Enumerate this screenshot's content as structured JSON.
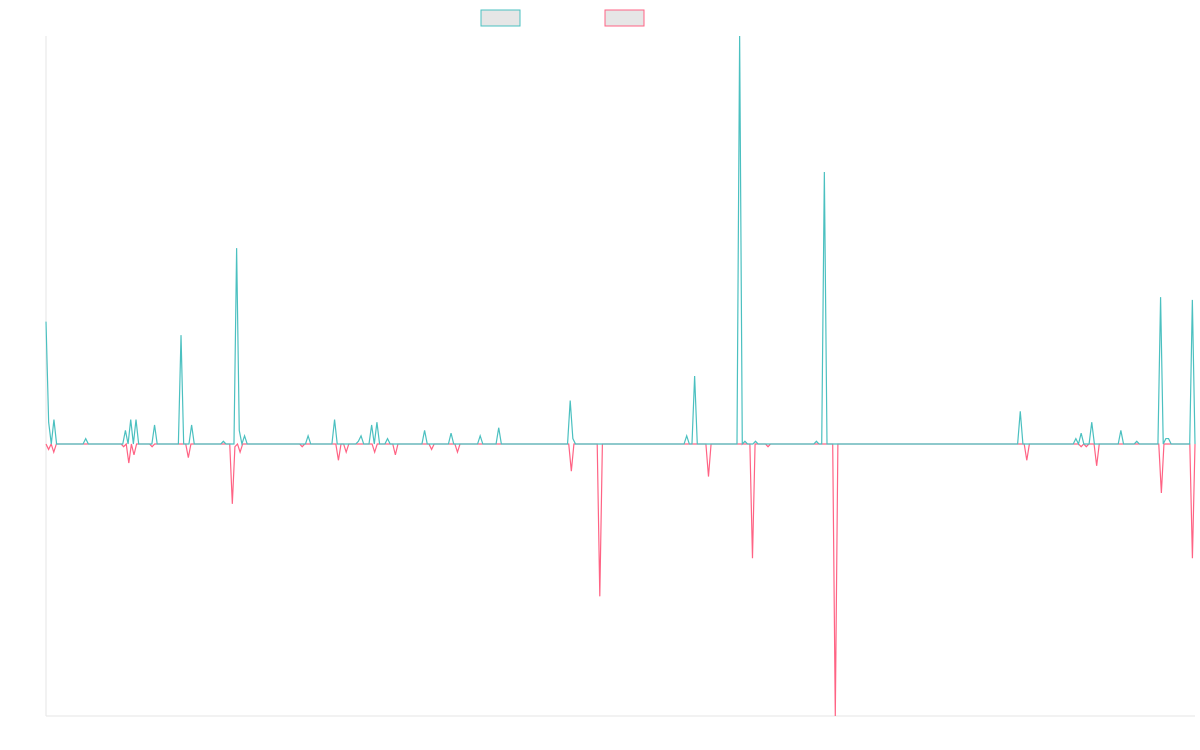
{
  "chart_data": {
    "type": "line",
    "title": "",
    "xlabel": "",
    "ylabel": "",
    "ylim": [
      -100,
      150
    ],
    "grid": false,
    "legend": "top-center",
    "colors": {
      "series_a": "#4bc0c0",
      "series_b": "#ff6384",
      "axis": "#e5e5e5",
      "legend_fill": "#e6e6e6"
    },
    "series": [
      {
        "key": "a",
        "values": [
          45,
          8,
          0,
          9,
          0,
          0,
          0,
          0,
          0,
          0,
          0,
          0,
          0,
          0,
          0,
          2,
          0,
          0,
          0,
          0,
          0,
          0,
          0,
          0,
          0,
          0,
          0,
          0,
          0,
          0,
          5,
          0,
          9,
          0,
          9,
          0,
          0,
          0,
          0,
          0,
          0,
          7,
          0,
          0,
          0,
          0,
          0,
          0,
          0,
          0,
          0,
          40,
          0,
          0,
          0,
          7,
          0,
          0,
          0,
          0,
          0,
          0,
          0,
          0,
          0,
          0,
          0,
          1,
          0,
          0,
          0,
          0,
          72,
          5,
          0,
          3,
          0,
          0,
          0,
          0,
          0,
          0,
          0,
          0,
          0,
          0,
          0,
          0,
          0,
          0,
          0,
          0,
          0,
          0,
          0,
          0,
          0,
          0,
          0,
          3,
          0,
          0,
          0,
          0,
          0,
          0,
          0,
          0,
          0,
          9,
          0,
          0,
          0,
          0,
          0,
          0,
          0,
          0,
          1,
          3,
          0,
          0,
          0,
          7,
          0,
          8,
          0,
          0,
          0,
          2,
          0,
          0,
          0,
          0,
          0,
          0,
          0,
          0,
          0,
          0,
          0,
          0,
          0,
          5,
          0,
          0,
          0,
          0,
          0,
          0,
          0,
          0,
          0,
          4,
          0,
          0,
          0,
          0,
          0,
          0,
          0,
          0,
          0,
          0,
          3,
          0,
          0,
          0,
          0,
          0,
          0,
          6,
          0,
          0,
          0,
          0,
          0,
          0,
          0,
          0,
          0,
          0,
          0,
          0,
          0,
          0,
          0,
          0,
          0,
          0,
          0,
          0,
          0,
          0,
          0,
          0,
          0,
          0,
          16,
          2,
          0,
          0,
          0,
          0,
          0,
          0,
          0,
          0,
          0,
          0,
          0,
          0,
          0,
          0,
          0,
          0,
          0,
          0,
          0,
          0,
          0,
          0,
          0,
          0,
          0,
          0,
          0,
          0,
          0,
          0,
          0,
          0,
          0,
          0,
          0,
          0,
          0,
          0,
          0,
          0,
          0,
          0,
          3,
          0,
          0,
          25,
          0,
          0,
          0,
          0,
          0,
          0,
          0,
          0,
          0,
          0,
          0,
          0,
          0,
          0,
          0,
          0,
          150,
          0,
          1,
          0,
          0,
          0,
          1,
          0,
          0,
          0,
          0,
          0,
          0,
          0,
          0,
          0,
          0,
          0,
          0,
          0,
          0,
          0,
          0,
          0,
          0,
          0,
          0,
          0,
          0,
          1,
          0,
          0,
          100,
          0,
          0,
          0,
          0,
          0,
          0,
          0,
          0,
          0,
          0,
          0,
          0,
          0,
          0,
          0,
          0,
          0,
          0,
          0,
          0,
          0,
          0,
          0,
          0,
          0,
          0,
          0,
          0,
          0,
          0,
          0,
          0,
          0,
          0,
          0,
          0,
          0,
          0,
          0,
          0,
          0,
          0,
          0,
          0,
          0,
          0,
          0,
          0,
          0,
          0,
          0,
          0,
          0,
          0,
          0,
          0,
          0,
          0,
          0,
          0,
          0,
          0,
          0,
          0,
          0,
          0,
          0,
          0,
          0,
          0,
          0,
          0,
          0,
          12,
          0,
          0,
          0,
          0,
          0,
          0,
          0,
          0,
          0,
          0,
          0,
          0,
          0,
          0,
          0,
          0,
          0,
          0,
          0,
          0,
          2,
          0,
          4,
          0,
          0,
          0,
          8,
          0,
          0,
          0,
          0,
          0,
          0,
          0,
          0,
          0,
          0,
          5,
          0,
          0,
          0,
          0,
          0,
          1,
          0,
          0,
          0,
          0,
          0,
          0,
          0,
          0,
          54,
          0,
          2,
          2,
          0,
          0,
          0,
          0,
          0,
          0,
          0,
          0,
          53,
          0
        ]
      },
      {
        "key": "b",
        "values": [
          0,
          -2,
          0,
          -3,
          0,
          0,
          0,
          0,
          0,
          0,
          0,
          0,
          0,
          0,
          0,
          0,
          0,
          0,
          0,
          0,
          0,
          0,
          0,
          0,
          0,
          0,
          0,
          0,
          0,
          0,
          -1,
          0,
          -7,
          0,
          -4,
          0,
          0,
          0,
          0,
          0,
          0,
          -1,
          0,
          0,
          0,
          0,
          0,
          0,
          0,
          0,
          0,
          0,
          0,
          0,
          0,
          -5,
          0,
          0,
          0,
          0,
          0,
          0,
          0,
          0,
          0,
          0,
          0,
          0,
          0,
          0,
          0,
          0,
          -22,
          -1,
          0,
          -3,
          0,
          0,
          0,
          0,
          0,
          0,
          0,
          0,
          0,
          0,
          0,
          0,
          0,
          0,
          0,
          0,
          0,
          0,
          0,
          0,
          0,
          0,
          0,
          -1,
          0,
          0,
          0,
          0,
          0,
          0,
          0,
          0,
          0,
          0,
          0,
          0,
          0,
          -6,
          0,
          0,
          -3,
          0,
          0,
          0,
          0,
          0,
          0,
          0,
          0,
          0,
          0,
          -3,
          0,
          0,
          0,
          0,
          0,
          0,
          0,
          -4,
          0,
          0,
          0,
          0,
          0,
          0,
          0,
          0,
          0,
          0,
          0,
          0,
          0,
          -2,
          0,
          0,
          0,
          0,
          0,
          0,
          0,
          0,
          0,
          -3,
          0,
          0,
          0,
          0,
          0,
          0,
          0,
          0,
          0,
          0,
          0,
          0,
          0,
          0,
          0,
          0,
          0,
          0,
          0,
          0,
          0,
          0,
          0,
          0,
          0,
          0,
          0,
          0,
          0,
          0,
          0,
          0,
          0,
          0,
          0,
          0,
          0,
          0,
          0,
          0,
          0,
          0,
          0,
          -10,
          0,
          0,
          0,
          0,
          0,
          0,
          0,
          0,
          0,
          0,
          -56,
          0,
          0,
          0,
          0,
          0,
          0,
          0,
          0,
          0,
          0,
          0,
          0,
          0,
          0,
          0,
          0,
          0,
          0,
          0,
          0,
          0,
          0,
          0,
          0,
          0,
          0,
          0,
          0,
          0,
          0,
          0,
          0,
          0,
          0,
          0,
          0,
          0,
          0,
          0,
          0,
          0,
          -12,
          0,
          0,
          0,
          0,
          0,
          0,
          0,
          0,
          0,
          0,
          0,
          0,
          0,
          0,
          0,
          0,
          -42,
          0,
          0,
          0,
          0,
          0,
          -1,
          0,
          0,
          0,
          0,
          0,
          0,
          0,
          0,
          0,
          0,
          0,
          0,
          0,
          0,
          0,
          0,
          0,
          0,
          0,
          0,
          0,
          0,
          0,
          0,
          0,
          -100,
          0,
          0,
          0,
          0,
          0,
          0,
          0,
          0,
          0,
          0,
          0,
          0,
          0,
          0,
          0,
          0,
          0,
          0,
          0,
          0,
          0,
          0,
          0,
          0,
          0,
          0,
          0,
          0,
          0,
          0,
          0,
          0,
          0,
          0,
          0,
          0,
          0,
          0,
          0,
          0,
          0,
          0,
          0,
          0,
          0,
          0,
          0,
          0,
          0,
          0,
          0,
          0,
          0,
          0,
          0,
          0,
          0,
          0,
          0,
          0,
          0,
          0,
          0,
          0,
          0,
          0,
          0,
          0,
          0,
          0,
          0,
          0,
          0,
          -6,
          0,
          0,
          0,
          0,
          0,
          0,
          0,
          0,
          0,
          0,
          0,
          0,
          0,
          0,
          0,
          0,
          0,
          0,
          0,
          0,
          -1,
          0,
          -1,
          0,
          0,
          0,
          -8,
          0,
          0,
          0,
          0,
          0,
          0,
          0,
          0,
          0,
          0,
          0,
          0,
          0,
          0,
          0,
          0,
          0,
          0,
          0,
          0,
          0,
          0,
          0,
          0,
          -18,
          0,
          0,
          0,
          0,
          0,
          0,
          0,
          0,
          0,
          0,
          0,
          -42,
          0
        ]
      }
    ]
  }
}
